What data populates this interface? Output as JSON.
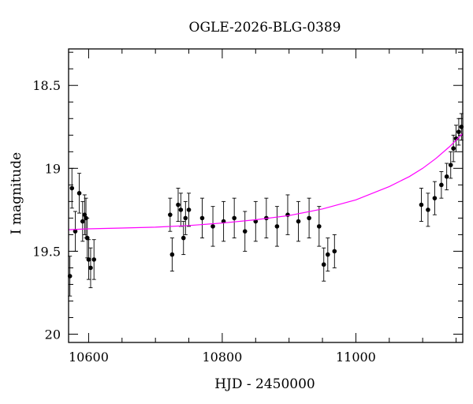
{
  "chart_data": {
    "type": "scatter",
    "title": "OGLE-2026-BLG-0389",
    "xlabel": "HJD - 2450000",
    "ylabel": "I magnitude",
    "xlim": [
      10570,
      11160
    ],
    "ylim": [
      20.05,
      18.28
    ],
    "y_inverted": true,
    "x_ticks": [
      10600,
      10800,
      11000
    ],
    "x_tick_labels": [
      "10600",
      "10800",
      "11000"
    ],
    "y_ticks": [
      18.5,
      19,
      19.5,
      20
    ],
    "y_tick_labels": [
      "18.5",
      "19",
      "19.5",
      "20"
    ],
    "grid": false,
    "legend": "none",
    "colors": {
      "points": "#000000",
      "errorbars": "#000000",
      "model": "#ff00ff",
      "axes": "#000000"
    },
    "series": [
      {
        "kind": "points_with_errorbars",
        "x": [
          10572,
          10575,
          10580,
          10586,
          10591,
          10594,
          10596,
          10598,
          10600,
          10603,
          10608,
          10722,
          10725,
          10734,
          10738,
          10742,
          10745,
          10750,
          10770,
          10786,
          10802,
          10818,
          10834,
          10850,
          10866,
          10882,
          10898,
          10914,
          10930,
          10945,
          10952,
          10958,
          10968,
          11098,
          11108,
          11118,
          11128,
          11136,
          11142,
          11146,
          11150,
          11154,
          11158
        ],
        "y": [
          19.65,
          19.12,
          19.38,
          19.15,
          19.32,
          19.28,
          19.3,
          19.42,
          19.55,
          19.6,
          19.55,
          19.28,
          19.52,
          19.22,
          19.25,
          19.42,
          19.3,
          19.25,
          19.3,
          19.35,
          19.32,
          19.3,
          19.38,
          19.32,
          19.3,
          19.35,
          19.28,
          19.32,
          19.3,
          19.35,
          19.58,
          19.52,
          19.5,
          19.22,
          19.25,
          19.18,
          19.1,
          19.05,
          18.98,
          18.88,
          18.82,
          18.78,
          18.75
        ],
        "err": [
          0.12,
          0.12,
          0.12,
          0.12,
          0.12,
          0.12,
          0.12,
          0.12,
          0.12,
          0.12,
          0.12,
          0.1,
          0.1,
          0.1,
          0.1,
          0.1,
          0.1,
          0.1,
          0.12,
          0.12,
          0.12,
          0.12,
          0.12,
          0.12,
          0.12,
          0.12,
          0.12,
          0.12,
          0.12,
          0.12,
          0.1,
          0.1,
          0.1,
          0.1,
          0.1,
          0.1,
          0.08,
          0.08,
          0.08,
          0.08,
          0.08,
          0.08,
          0.08
        ]
      },
      {
        "kind": "model_curve",
        "x": [
          10570,
          10600,
          10650,
          10700,
          10750,
          10800,
          10850,
          10900,
          10950,
          11000,
          11050,
          11080,
          11100,
          11120,
          11140,
          11160
        ],
        "y": [
          19.37,
          19.365,
          19.36,
          19.355,
          19.345,
          19.33,
          19.31,
          19.285,
          19.245,
          19.19,
          19.11,
          19.05,
          19.0,
          18.94,
          18.87,
          18.79
        ]
      }
    ]
  }
}
